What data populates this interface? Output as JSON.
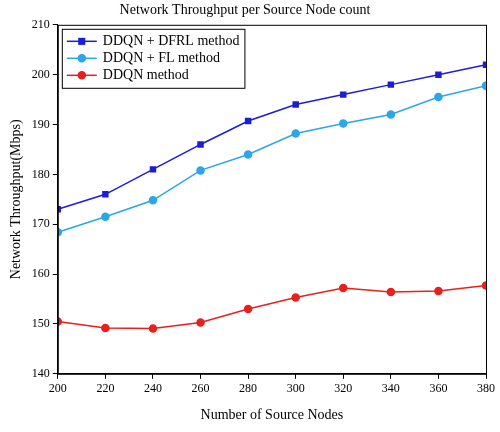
{
  "chart_data": {
    "type": "line",
    "title": "Network Throughput per Source Node count",
    "x_label": "Number of Source Nodes",
    "y_label": "Network Throughput(Mbps)",
    "x": [
      200,
      220,
      240,
      260,
      280,
      300,
      320,
      340,
      360,
      380
    ],
    "series": [
      {
        "name": "DDQN + DFRL method",
        "color": "#1c1cd9",
        "marker": "square",
        "line_style": "solid",
        "values": [
          173,
          176,
          181,
          186,
          190.7,
          194,
          196,
          198,
          200,
          202
        ]
      },
      {
        "name": "DDQN + FL method",
        "color": "#2ba6ea",
        "marker": "circle",
        "line_style": "solid",
        "values": [
          168.4,
          171.5,
          174.8,
          180.8,
          184,
          188.2,
          190.2,
          192,
          195.5,
          197.8
        ]
      },
      {
        "name": "DDQN method",
        "color": "#e8201e",
        "marker": "circle",
        "line_style": "solid",
        "values": [
          150.5,
          149.2,
          149.1,
          150.3,
          153,
          155.3,
          157.2,
          156.4,
          156.6,
          157.7
        ]
      }
    ],
    "xlim": [
      200,
      380
    ],
    "xticks": [
      200,
      220,
      240,
      260,
      280,
      300,
      320,
      340,
      360,
      380
    ],
    "ylim": [
      140,
      210
    ],
    "yticks": [
      140,
      150,
      160,
      170,
      180,
      190,
      200,
      210
    ],
    "grid": false,
    "legend": "upper left"
  }
}
